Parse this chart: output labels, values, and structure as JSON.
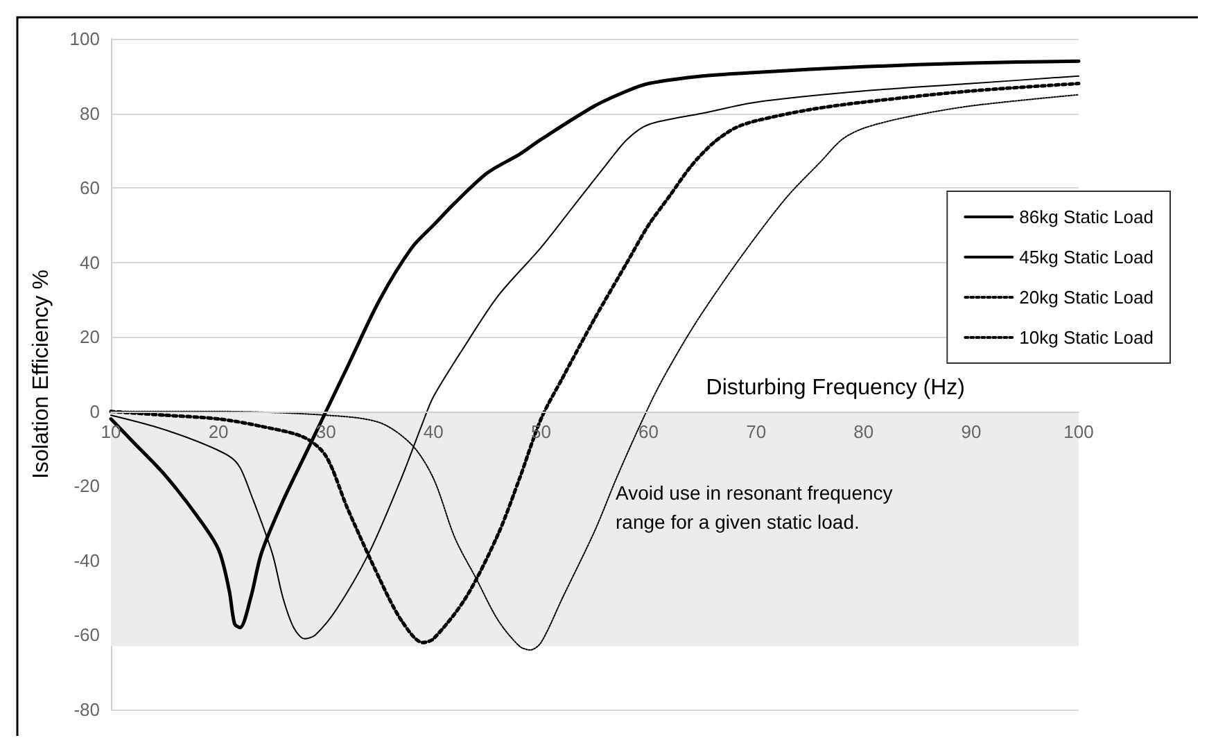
{
  "chart_data": {
    "type": "line",
    "xlabel": "Disturbing Frequency (Hz)",
    "ylabel": "Isolation Efficiency %",
    "xlim": [
      10,
      100
    ],
    "xticks": [
      10,
      20,
      30,
      40,
      50,
      60,
      70,
      80,
      90,
      100
    ],
    "ylim": [
      -80,
      100
    ],
    "yticks": [
      -80,
      -60,
      -40,
      -20,
      0,
      20,
      40,
      60,
      80,
      100
    ],
    "grid": "y",
    "legend": "right",
    "marker": "none",
    "bands": [
      {
        "axis": "y",
        "from": -63,
        "to": 0,
        "color": "#ececec",
        "label": "Avoid use in resonant frequency range for a given static load."
      }
    ],
    "series": [
      {
        "name": "86kg Static Load",
        "color": "#000000",
        "line_style": "solid",
        "x": [
          10,
          12,
          15,
          18,
          20,
          21,
          21.5,
          22,
          23,
          24,
          26,
          28,
          30,
          32,
          35,
          38,
          40,
          42,
          45,
          48,
          50,
          55,
          58,
          60,
          65,
          70,
          80,
          90,
          100
        ],
        "values": [
          -2,
          -8,
          -17,
          -28,
          -37,
          -48,
          -57,
          -58,
          -50,
          -38,
          -24,
          -12,
          0,
          12,
          30,
          44,
          50,
          56,
          64,
          69,
          73,
          82,
          86,
          88,
          90,
          91,
          92.5,
          93.5,
          94
        ]
      },
      {
        "name": "45kg Static Load",
        "color": "#000000",
        "line_style": "solid",
        "x": [
          10,
          14,
          18,
          21,
          22,
          23,
          25,
          26,
          27,
          28,
          29,
          31,
          34,
          37,
          39,
          40,
          43,
          46,
          50,
          53,
          56,
          58,
          60,
          65,
          70,
          80,
          90,
          100
        ],
        "values": [
          -1,
          -4,
          -8,
          -12,
          -15,
          -22,
          -38,
          -50,
          -58,
          -61,
          -60,
          -53,
          -38,
          -18,
          -3,
          4,
          18,
          31,
          44,
          55,
          66,
          73,
          77,
          80,
          83,
          86,
          88,
          90
        ]
      },
      {
        "name": "20kg Static Load",
        "color": "#000000",
        "line_style": "dotted",
        "x": [
          10,
          15,
          20,
          24,
          28,
          30,
          32,
          35,
          37,
          39,
          40,
          43,
          46,
          48,
          50,
          52,
          55,
          58,
          60,
          62,
          64,
          66,
          68,
          70,
          75,
          80,
          90,
          100
        ],
        "values": [
          0,
          -1,
          -2,
          -4,
          -7,
          -12,
          -26,
          -45,
          -56,
          -62,
          -61,
          -50,
          -33,
          -18,
          -2,
          9,
          25,
          40,
          50,
          58,
          66,
          72,
          76,
          78,
          81,
          83,
          86,
          88
        ]
      },
      {
        "name": "10kg Static Load",
        "color": "#000000",
        "line_style": "dotted",
        "x": [
          10,
          20,
          30,
          35,
          38,
          40,
          42,
          44,
          46,
          48,
          49,
          50,
          52,
          55,
          57,
          59,
          61,
          64,
          67,
          70,
          73,
          76,
          78,
          80,
          84,
          90,
          100
        ],
        "values": [
          0,
          0,
          -1,
          -3,
          -9,
          -18,
          -34,
          -45,
          -56,
          -63,
          -64,
          -62,
          -50,
          -32,
          -18,
          -5,
          7,
          22,
          35,
          47,
          58,
          67,
          73,
          76,
          79,
          82,
          85
        ]
      }
    ]
  }
}
